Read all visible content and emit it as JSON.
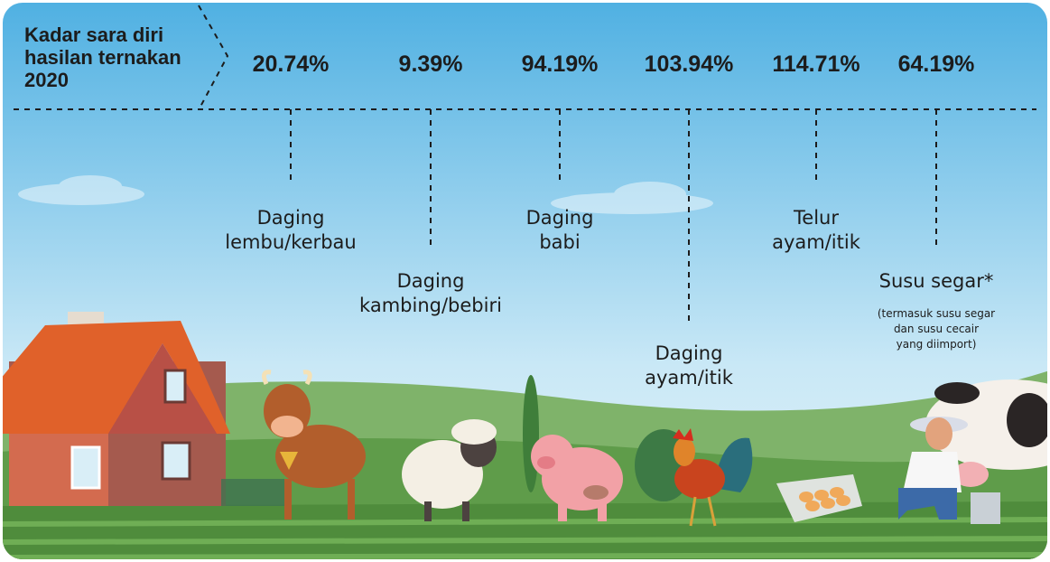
{
  "header": {
    "title_lines": [
      "Kadar sara diri",
      "hasilan ternakan",
      "2020"
    ]
  },
  "items": [
    {
      "value": "20.74%",
      "label_lines": [
        "Daging",
        "lembu/kerbau"
      ]
    },
    {
      "value": "9.39%",
      "label_lines": [
        "Daging",
        "kambing/bebiri"
      ]
    },
    {
      "value": "94.19%",
      "label_lines": [
        "Daging",
        "babi"
      ]
    },
    {
      "value": "103.94%",
      "label_lines": [
        "Daging",
        "ayam/itik"
      ]
    },
    {
      "value": "114.71%",
      "label_lines": [
        "Telur",
        "ayam/itik"
      ]
    },
    {
      "value": "64.19%",
      "label_lines": [
        "Susu segar*"
      ],
      "note_lines": [
        "(termasuk susu segar",
        "dan susu cecair",
        "yang diimport)"
      ]
    }
  ]
}
